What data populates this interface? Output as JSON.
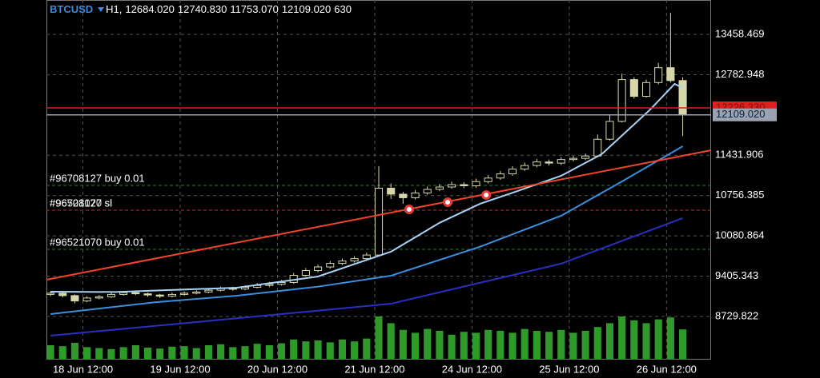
{
  "chart_data": {
    "type": "candlestick",
    "header": {
      "symbol": "BTCUSD",
      "period": "H1,",
      "open": {
        "value": 12684.02,
        "label": "12684.020"
      },
      "high": {
        "value": 12740.83,
        "label": "12740.830"
      },
      "low": {
        "value": 11753.07,
        "label": "11753.070"
      },
      "close": {
        "value": 12109.02,
        "label": "12109.020"
      },
      "volume": 630
    },
    "x": [
      4,
      7,
      10,
      13,
      16,
      19,
      22,
      25,
      28,
      31,
      34,
      37,
      40,
      43,
      46,
      49,
      52,
      55,
      58,
      61,
      64,
      67,
      70,
      73,
      76,
      79,
      82,
      85,
      88,
      91,
      94,
      97,
      100,
      103,
      106,
      109,
      112,
      115,
      118,
      121,
      124,
      127,
      130,
      133,
      136,
      139,
      142,
      145,
      148,
      151,
      154,
      157,
      160
    ],
    "open": [
      9100,
      9120,
      9080,
      8990,
      9040,
      9060,
      9100,
      9130,
      9110,
      9090,
      9070,
      9100,
      9120,
      9140,
      9170,
      9200,
      9190,
      9220,
      9250,
      9270,
      9300,
      9420,
      9500,
      9560,
      9620,
      9660,
      9700,
      9760,
      10880,
      10780,
      10720,
      10800,
      10860,
      10900,
      10940,
      10920,
      10990,
      11050,
      11120,
      11200,
      11260,
      11320,
      11300,
      11360,
      11380,
      11420,
      11700,
      12000,
      12700,
      12420,
      12650,
      12900,
      12684.02
    ],
    "high": [
      9150,
      9160,
      9100,
      9070,
      9090,
      9130,
      9160,
      9150,
      9130,
      9110,
      9130,
      9150,
      9170,
      9200,
      9230,
      9230,
      9250,
      9290,
      9310,
      9340,
      9460,
      9540,
      9600,
      9660,
      9700,
      9740,
      9800,
      11250,
      10960,
      10820,
      10850,
      10910,
      10950,
      10990,
      10980,
      11040,
      11100,
      11170,
      11250,
      11310,
      11370,
      11360,
      11400,
      11420,
      11460,
      11780,
      12100,
      12800,
      12740,
      12700,
      12980,
      13820,
      12740.83
    ],
    "low": [
      9070,
      9050,
      8950,
      8970,
      9020,
      9040,
      9080,
      9090,
      9060,
      9040,
      9050,
      9080,
      9100,
      9120,
      9150,
      9160,
      9170,
      9200,
      9220,
      9250,
      9280,
      9400,
      9470,
      9530,
      9590,
      9630,
      9680,
      9740,
      10700,
      10620,
      10690,
      10770,
      10830,
      10870,
      10880,
      10890,
      10960,
      11020,
      11090,
      11170,
      11230,
      11260,
      11270,
      11330,
      11350,
      11400,
      11680,
      11980,
      12380,
      12400,
      12620,
      12650,
      11753.07
    ],
    "close": [
      9120,
      9080,
      8990,
      9040,
      9060,
      9100,
      9130,
      9110,
      9090,
      9070,
      9100,
      9120,
      9140,
      9170,
      9200,
      9190,
      9220,
      9250,
      9270,
      9300,
      9420,
      9500,
      9560,
      9620,
      9660,
      9700,
      9760,
      10880,
      10780,
      10720,
      10800,
      10860,
      10900,
      10940,
      10920,
      10990,
      11050,
      11120,
      11200,
      11260,
      11320,
      11300,
      11360,
      11380,
      11420,
      11700,
      12000,
      12700,
      12420,
      12650,
      12900,
      12684.02,
      12109.02
    ],
    "volume": [
      300,
      280,
      350,
      260,
      240,
      220,
      260,
      300,
      250,
      230,
      270,
      280,
      240,
      300,
      320,
      260,
      280,
      330,
      300,
      340,
      420,
      380,
      400,
      360,
      420,
      380,
      440,
      900,
      760,
      620,
      560,
      640,
      600,
      520,
      580,
      560,
      620,
      600,
      560,
      640,
      600,
      580,
      620,
      560,
      600,
      680,
      760,
      900,
      820,
      760,
      840,
      880,
      630
    ],
    "color": "#d6d6a8",
    "volume_color": "#2f9a2a",
    "xlim": [
      3,
      167
    ],
    "ylim": [
      8007,
      14034
    ],
    "volume_lim": [
      0,
      1000
    ],
    "xticks": [
      {
        "value": 12,
        "label": "18 Jun 12:00"
      },
      {
        "value": 36,
        "label": "19 Jun 12:00"
      },
      {
        "value": 60,
        "label": "20 Jun 12:00"
      },
      {
        "value": 84,
        "label": "21 Jun 12:00"
      },
      {
        "value": 108,
        "label": "24 Jun 12:00"
      },
      {
        "value": 132,
        "label": "25 Jun 12:00"
      },
      {
        "value": 156,
        "label": "26 Jun 12:00"
      }
    ],
    "yticks": [
      13458.469,
      12782.948,
      11431.906,
      10756.385,
      10080.864,
      9405.343,
      8729.822
    ],
    "grid": true,
    "moving_averages": [
      {
        "color": "#a9d3f5",
        "x": [
          4,
          20,
          50,
          70,
          88,
          100,
          110,
          120,
          130,
          140,
          146,
          152,
          158,
          160
        ],
        "values": [
          9146,
          9140,
          9213,
          9400,
          9815,
          10300,
          10619,
          10850,
          11088,
          11450,
          11824,
          12200,
          12628,
          12561
        ]
      },
      {
        "color": "#3a8fe0",
        "x": [
          4,
          30,
          50,
          70,
          88,
          110,
          130,
          144,
          160
        ],
        "values": [
          8770,
          8970,
          9078,
          9230,
          9413,
          9900,
          10418,
          10954,
          11583
        ]
      },
      {
        "color": "#2b2fc0",
        "x": [
          4,
          50,
          88,
          130,
          160
        ],
        "values": [
          8409,
          8700,
          8944,
          9615,
          10378
        ]
      }
    ],
    "trendline": {
      "color": "#f0452a",
      "x": [
        3,
        167
      ],
      "values": [
        9346,
        11516
      ]
    },
    "levels": [
      {
        "value": 10927,
        "color": "#2e7d32",
        "labels": [
          "#96708127 buy 0.01"
        ]
      },
      {
        "value": 10512,
        "color": "#c62828",
        "labels": [
          "#96708127 sl",
          "#96521070 sl"
        ]
      },
      {
        "value": 9856,
        "color": "#2e7d32",
        "labels": [
          "#96521070 buy 0.01"
        ]
      }
    ],
    "red_line": {
      "value": 12226.33,
      "label": "12226.330",
      "color": "#e0201c"
    },
    "price_tag": {
      "value": 12109.02,
      "label": "12109.020",
      "color": "#9aa4b0"
    },
    "trade_markers": {
      "x": [
        92.5,
        102,
        111.5
      ],
      "values": [
        10525,
        10646,
        10766
      ],
      "color": "#e53935"
    }
  }
}
